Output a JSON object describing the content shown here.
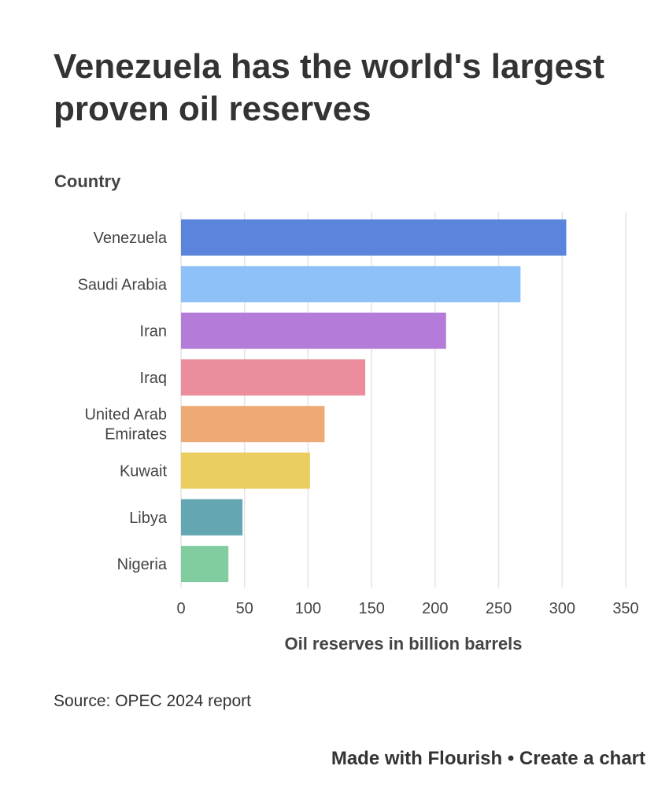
{
  "chart_data": {
    "type": "bar",
    "orientation": "horizontal",
    "title": "Venezuela has the world's largest proven oil reserves",
    "ylabel": "Country",
    "xlabel": "Oil reserves in billion barrels",
    "xlim": [
      0,
      350
    ],
    "xticks": [
      0,
      50,
      100,
      150,
      200,
      250,
      300,
      350
    ],
    "grid": true,
    "categories": [
      "Venezuela",
      "Saudi Arabia",
      "Iran",
      "Iraq",
      "United Arab Emirates",
      "Kuwait",
      "Libya",
      "Nigeria"
    ],
    "category_lines": [
      [
        "Venezuela"
      ],
      [
        "Saudi Arabia"
      ],
      [
        "Iran"
      ],
      [
        "Iraq"
      ],
      [
        "United Arab",
        "Emirates"
      ],
      [
        "Kuwait"
      ],
      [
        "Libya"
      ],
      [
        "Nigeria"
      ]
    ],
    "values": [
      303.2,
      267.2,
      208.6,
      145.0,
      113.0,
      101.5,
      48.4,
      37.3
    ],
    "colors": [
      "#5b84dc",
      "#8dc1f8",
      "#b47cd8",
      "#ec8d9d",
      "#eeaa75",
      "#ebcd62",
      "#64a7b3",
      "#81cda0"
    ]
  },
  "source": "Source: OPEC 2024 report",
  "footer": {
    "made_with": "Made with Flourish",
    "separator": "•",
    "create": "Create a chart"
  }
}
